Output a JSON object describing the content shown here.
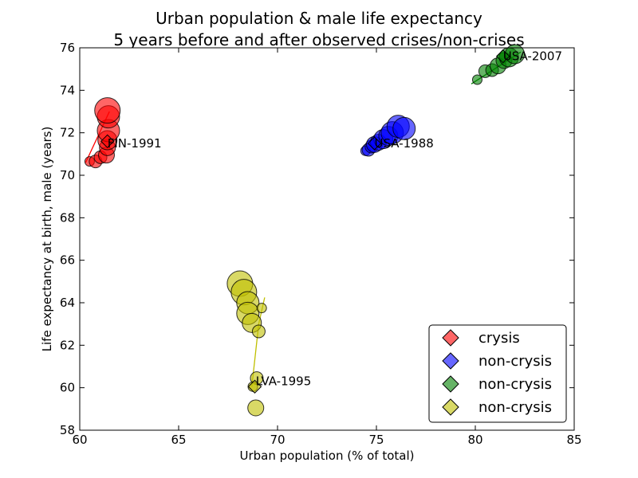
{
  "chart_data": {
    "type": "scatter",
    "title_line1": "Urban population & male life expectancy",
    "title_line2": "5 years before and after observed crises/non-crises",
    "xlabel": "Urban population (% of total)",
    "ylabel": "Life expectancy at birth, male (years)",
    "xlim": [
      60,
      85
    ],
    "ylim": [
      58,
      76
    ],
    "xticks": [
      60,
      65,
      70,
      75,
      80,
      85
    ],
    "yticks": [
      58,
      60,
      62,
      64,
      66,
      68,
      70,
      72,
      74,
      76
    ],
    "grid": false,
    "legend_position": "bottom-right",
    "series": [
      {
        "name": "crysis",
        "color": "#ff0000",
        "label": "FIN-1991",
        "label_at": [
          61.4,
          71.5
        ],
        "marker_at": [
          61.4,
          71.6
        ],
        "trend": [
          [
            60.3,
            70.6
          ],
          [
            61.5,
            73.0
          ]
        ],
        "points": [
          {
            "x": 60.5,
            "y": 70.65,
            "s": 2
          },
          {
            "x": 60.8,
            "y": 70.65,
            "s": 3
          },
          {
            "x": 61.05,
            "y": 70.85,
            "s": 3
          },
          {
            "x": 61.35,
            "y": 70.95,
            "s": 4
          },
          {
            "x": 61.4,
            "y": 71.3,
            "s": 4
          },
          {
            "x": 61.4,
            "y": 71.65,
            "s": 5
          },
          {
            "x": 61.45,
            "y": 72.1,
            "s": 6
          },
          {
            "x": 61.45,
            "y": 72.75,
            "s": 6
          },
          {
            "x": 61.4,
            "y": 73.05,
            "s": 7
          }
        ]
      },
      {
        "name": "non-crysis",
        "color": "#0000ff",
        "label": "USA-1988",
        "label_at": [
          74.9,
          71.5
        ],
        "marker_at": [
          74.9,
          71.5
        ],
        "trend": [],
        "points": [
          {
            "x": 74.45,
            "y": 71.15,
            "s": 2
          },
          {
            "x": 74.6,
            "y": 71.2,
            "s": 3
          },
          {
            "x": 74.75,
            "y": 71.35,
            "s": 3
          },
          {
            "x": 74.9,
            "y": 71.45,
            "s": 4
          },
          {
            "x": 75.1,
            "y": 71.55,
            "s": 4
          },
          {
            "x": 75.35,
            "y": 71.7,
            "s": 5
          },
          {
            "x": 75.6,
            "y": 71.85,
            "s": 5
          },
          {
            "x": 75.8,
            "y": 72.0,
            "s": 6
          },
          {
            "x": 76.1,
            "y": 72.3,
            "s": 6
          },
          {
            "x": 76.4,
            "y": 72.2,
            "s": 6
          }
        ]
      },
      {
        "name": "non-crysis",
        "color": "#008000",
        "label": "USA-2007",
        "label_at": [
          81.4,
          75.6
        ],
        "marker_at": [
          81.4,
          75.6
        ],
        "trend": [
          [
            79.8,
            74.3
          ],
          [
            82.3,
            75.8
          ]
        ],
        "points": [
          {
            "x": 80.1,
            "y": 74.5,
            "s": 2
          },
          {
            "x": 80.5,
            "y": 74.9,
            "s": 3
          },
          {
            "x": 80.85,
            "y": 74.95,
            "s": 3
          },
          {
            "x": 81.15,
            "y": 75.15,
            "s": 4
          },
          {
            "x": 81.45,
            "y": 75.4,
            "s": 4
          },
          {
            "x": 81.7,
            "y": 75.55,
            "s": 5
          },
          {
            "x": 82.0,
            "y": 75.7,
            "s": 5
          }
        ]
      },
      {
        "name": "non-crysis",
        "color": "#bfbf00",
        "label": "LVA-1995",
        "label_at": [
          68.9,
          60.3
        ],
        "marker_at": [
          68.85,
          60.05
        ],
        "trend": [
          [
            68.7,
            60.05
          ],
          [
            69.05,
            63.0
          ],
          [
            69.35,
            64.25
          ]
        ],
        "points": [
          {
            "x": 68.1,
            "y": 64.9,
            "s": 7
          },
          {
            "x": 68.3,
            "y": 64.5,
            "s": 7
          },
          {
            "x": 68.5,
            "y": 64.0,
            "s": 6
          },
          {
            "x": 68.5,
            "y": 63.5,
            "s": 6
          },
          {
            "x": 68.7,
            "y": 63.05,
            "s": 5
          },
          {
            "x": 69.05,
            "y": 62.65,
            "s": 3
          },
          {
            "x": 69.2,
            "y": 63.75,
            "s": 2
          },
          {
            "x": 68.95,
            "y": 60.45,
            "s": 3
          },
          {
            "x": 68.75,
            "y": 60.05,
            "s": 2
          },
          {
            "x": 68.9,
            "y": 59.05,
            "s": 4
          }
        ]
      }
    ]
  }
}
